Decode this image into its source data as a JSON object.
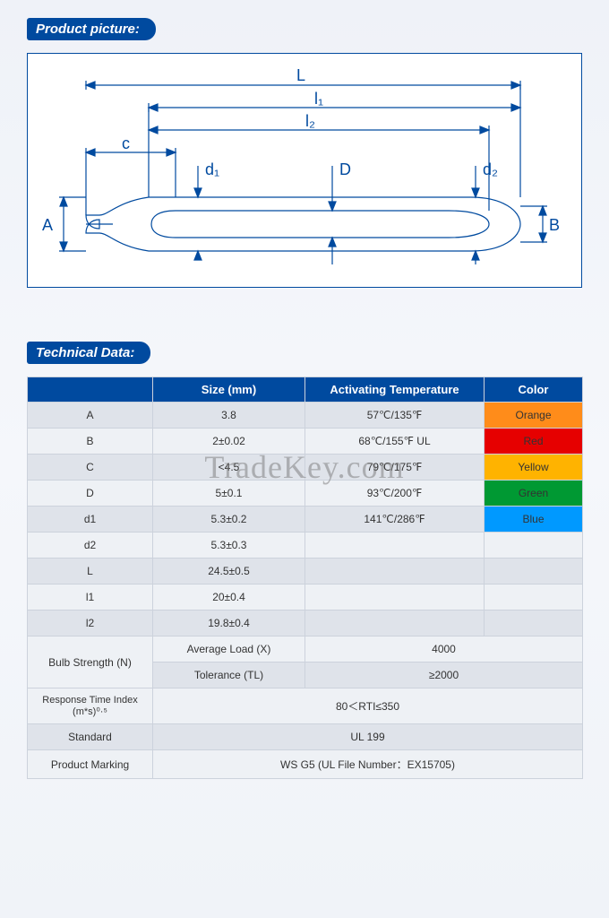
{
  "watermark": "TradeKey.com",
  "sections": {
    "picture": "Product picture:",
    "technical": "Technical Data:"
  },
  "diagram": {
    "labels": {
      "L": "L",
      "l1": "l₁",
      "l2": "l₂",
      "c": "c",
      "d1": "d₁",
      "D": "D",
      "d2": "d₂",
      "A": "A",
      "B": "B"
    },
    "stroke": "#004a9f",
    "stroke_width": 1.2
  },
  "table": {
    "headers": [
      "",
      "Size (mm)",
      "Activating Temperature",
      "Color"
    ],
    "size_rows": [
      {
        "k": "A",
        "v": "3.8",
        "t": "57℃/135℉",
        "c": "Orange",
        "cc": "#ff8c1a"
      },
      {
        "k": "B",
        "v": "2±0.02",
        "t": "68℃/155℉ UL",
        "c": "Red",
        "cc": "#e60000"
      },
      {
        "k": "C",
        "v": "<4.5",
        "t": "79℃/175℉",
        "c": "Yellow",
        "cc": "#ffb300"
      },
      {
        "k": "D",
        "v": "5±0.1",
        "t": "93℃/200℉",
        "c": "Green",
        "cc": "#009933"
      },
      {
        "k": "d1",
        "v": "5.3±0.2",
        "t": "141℃/286℉",
        "c": "Blue",
        "cc": "#0099ff"
      },
      {
        "k": "d2",
        "v": "5.3±0.3"
      },
      {
        "k": "L",
        "v": "24.5±0.5"
      },
      {
        "k": "l1",
        "v": "20±0.4"
      },
      {
        "k": "l2",
        "v": "19.8±0.4"
      }
    ],
    "bulb_label": "Bulb Strength (N)",
    "bulb_rows": [
      {
        "k": "Average Load (X)",
        "v": "4000"
      },
      {
        "k": "Tolerance (TL)",
        "v": "≥2000"
      }
    ],
    "rti": {
      "k": "Response Time Index (m*s)⁰·⁵",
      "v": "80＜RTI≤350"
    },
    "standard": {
      "k": "Standard",
      "v": "UL 199"
    },
    "marking": {
      "k": "Product Marking",
      "v": "WS G5 (UL File Number：EX15705)"
    }
  }
}
